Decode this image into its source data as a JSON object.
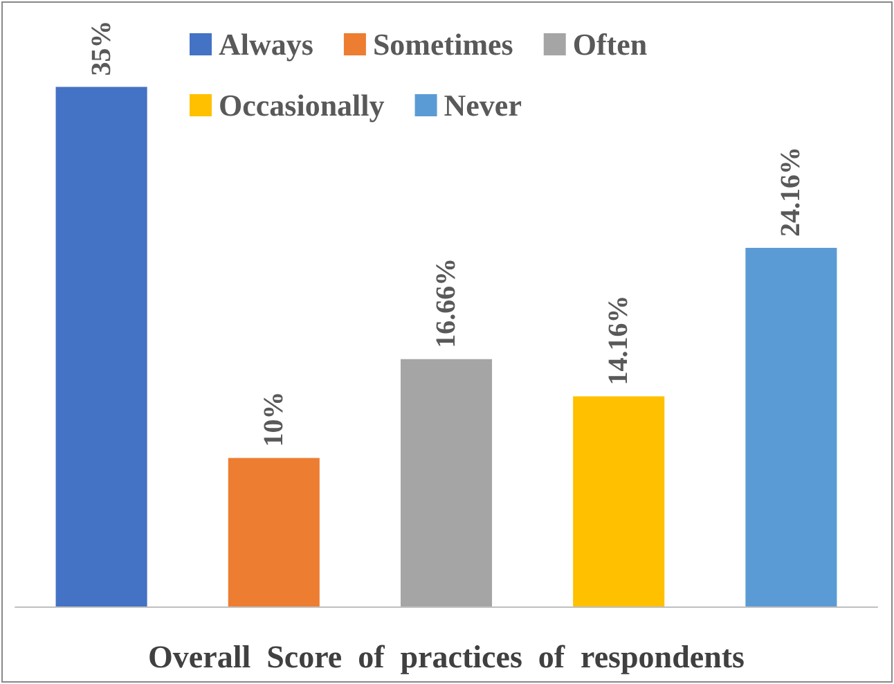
{
  "chart_data": {
    "type": "bar",
    "categories": [
      null,
      null,
      null,
      null,
      null
    ],
    "xlabel": "Overall  Score  of  practices  of  respondents",
    "stacked": true,
    "series": [
      {
        "name": "Always",
        "color": "#4472c4",
        "values": [
          35,
          null,
          null,
          null,
          null
        ],
        "value_labels": [
          "35%",
          null,
          null,
          null,
          null
        ]
      },
      {
        "name": "Sometimes",
        "color": "#ed7d31",
        "values": [
          null,
          10,
          null,
          null,
          null
        ],
        "value_labels": [
          null,
          "10%",
          null,
          null,
          null
        ]
      },
      {
        "name": "Often",
        "color": "#a5a5a5",
        "values": [
          null,
          null,
          16.66,
          null,
          null
        ],
        "value_labels": [
          null,
          null,
          "16.66%",
          null,
          null
        ]
      },
      {
        "name": "Occasionally",
        "color": "#ffc000",
        "values": [
          null,
          null,
          null,
          14.16,
          null
        ],
        "value_labels": [
          null,
          null,
          null,
          "14.16%",
          null
        ]
      },
      {
        "name": "Never",
        "color": "#5b9bd5",
        "values": [
          null,
          null,
          null,
          null,
          24.16
        ],
        "value_labels": [
          null,
          null,
          null,
          null,
          "24.16%"
        ]
      }
    ],
    "legend": "top"
  }
}
